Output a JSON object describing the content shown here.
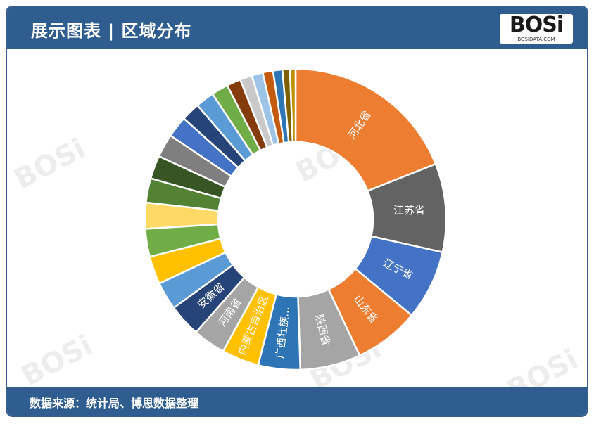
{
  "header": {
    "title": "展示图表 | 区域分布",
    "logo_text": "BOSi",
    "logo_sub": "BOSIDATA.COM"
  },
  "footer": {
    "source": "数据来源：统计局、博思数据整理"
  },
  "chart_data": {
    "type": "pie",
    "donut": true,
    "title": "",
    "slices": [
      {
        "label": "河北省",
        "value": 19.0,
        "color": "#ed7d31"
      },
      {
        "label": "江苏省",
        "value": 9.5,
        "color": "#636363"
      },
      {
        "label": "辽宁省",
        "value": 7.5,
        "color": "#4472c4"
      },
      {
        "label": "山东省",
        "value": 7.0,
        "color": "#ed7d31"
      },
      {
        "label": "陕西省",
        "value": 6.5,
        "color": "#a5a5a5"
      },
      {
        "label": "广西壮族...",
        "value": 4.5,
        "color": "#2e75b6"
      },
      {
        "label": "内蒙古自治区",
        "value": 4.0,
        "color": "#ffc000"
      },
      {
        "label": "河南省",
        "value": 3.5,
        "color": "#a5a5a5"
      },
      {
        "label": "安徽省",
        "value": 3.5,
        "color": "#264478"
      },
      {
        "label": "",
        "value": 3.0,
        "color": "#5b9bd5"
      },
      {
        "label": "",
        "value": 3.0,
        "color": "#ffc000"
      },
      {
        "label": "",
        "value": 3.0,
        "color": "#70ad47"
      },
      {
        "label": "",
        "value": 2.8,
        "color": "#ffd966"
      },
      {
        "label": "",
        "value": 2.6,
        "color": "#548235"
      },
      {
        "label": "",
        "value": 2.5,
        "color": "#375623"
      },
      {
        "label": "",
        "value": 2.5,
        "color": "#7f7f7f"
      },
      {
        "label": "",
        "value": 2.3,
        "color": "#4472c4"
      },
      {
        "label": "",
        "value": 2.0,
        "color": "#264478"
      },
      {
        "label": "",
        "value": 2.0,
        "color": "#5b9bd5"
      },
      {
        "label": "",
        "value": 1.8,
        "color": "#70ad47"
      },
      {
        "label": "",
        "value": 1.5,
        "color": "#843c0c"
      },
      {
        "label": "",
        "value": 1.3,
        "color": "#c9c9c9"
      },
      {
        "label": "",
        "value": 1.2,
        "color": "#9dc3e6"
      },
      {
        "label": "",
        "value": 1.1,
        "color": "#c55a11"
      },
      {
        "label": "",
        "value": 1.0,
        "color": "#2e75b6"
      },
      {
        "label": "",
        "value": 0.8,
        "color": "#7f6000"
      },
      {
        "label": "",
        "value": 0.6,
        "color": "#bf9000"
      }
    ]
  }
}
